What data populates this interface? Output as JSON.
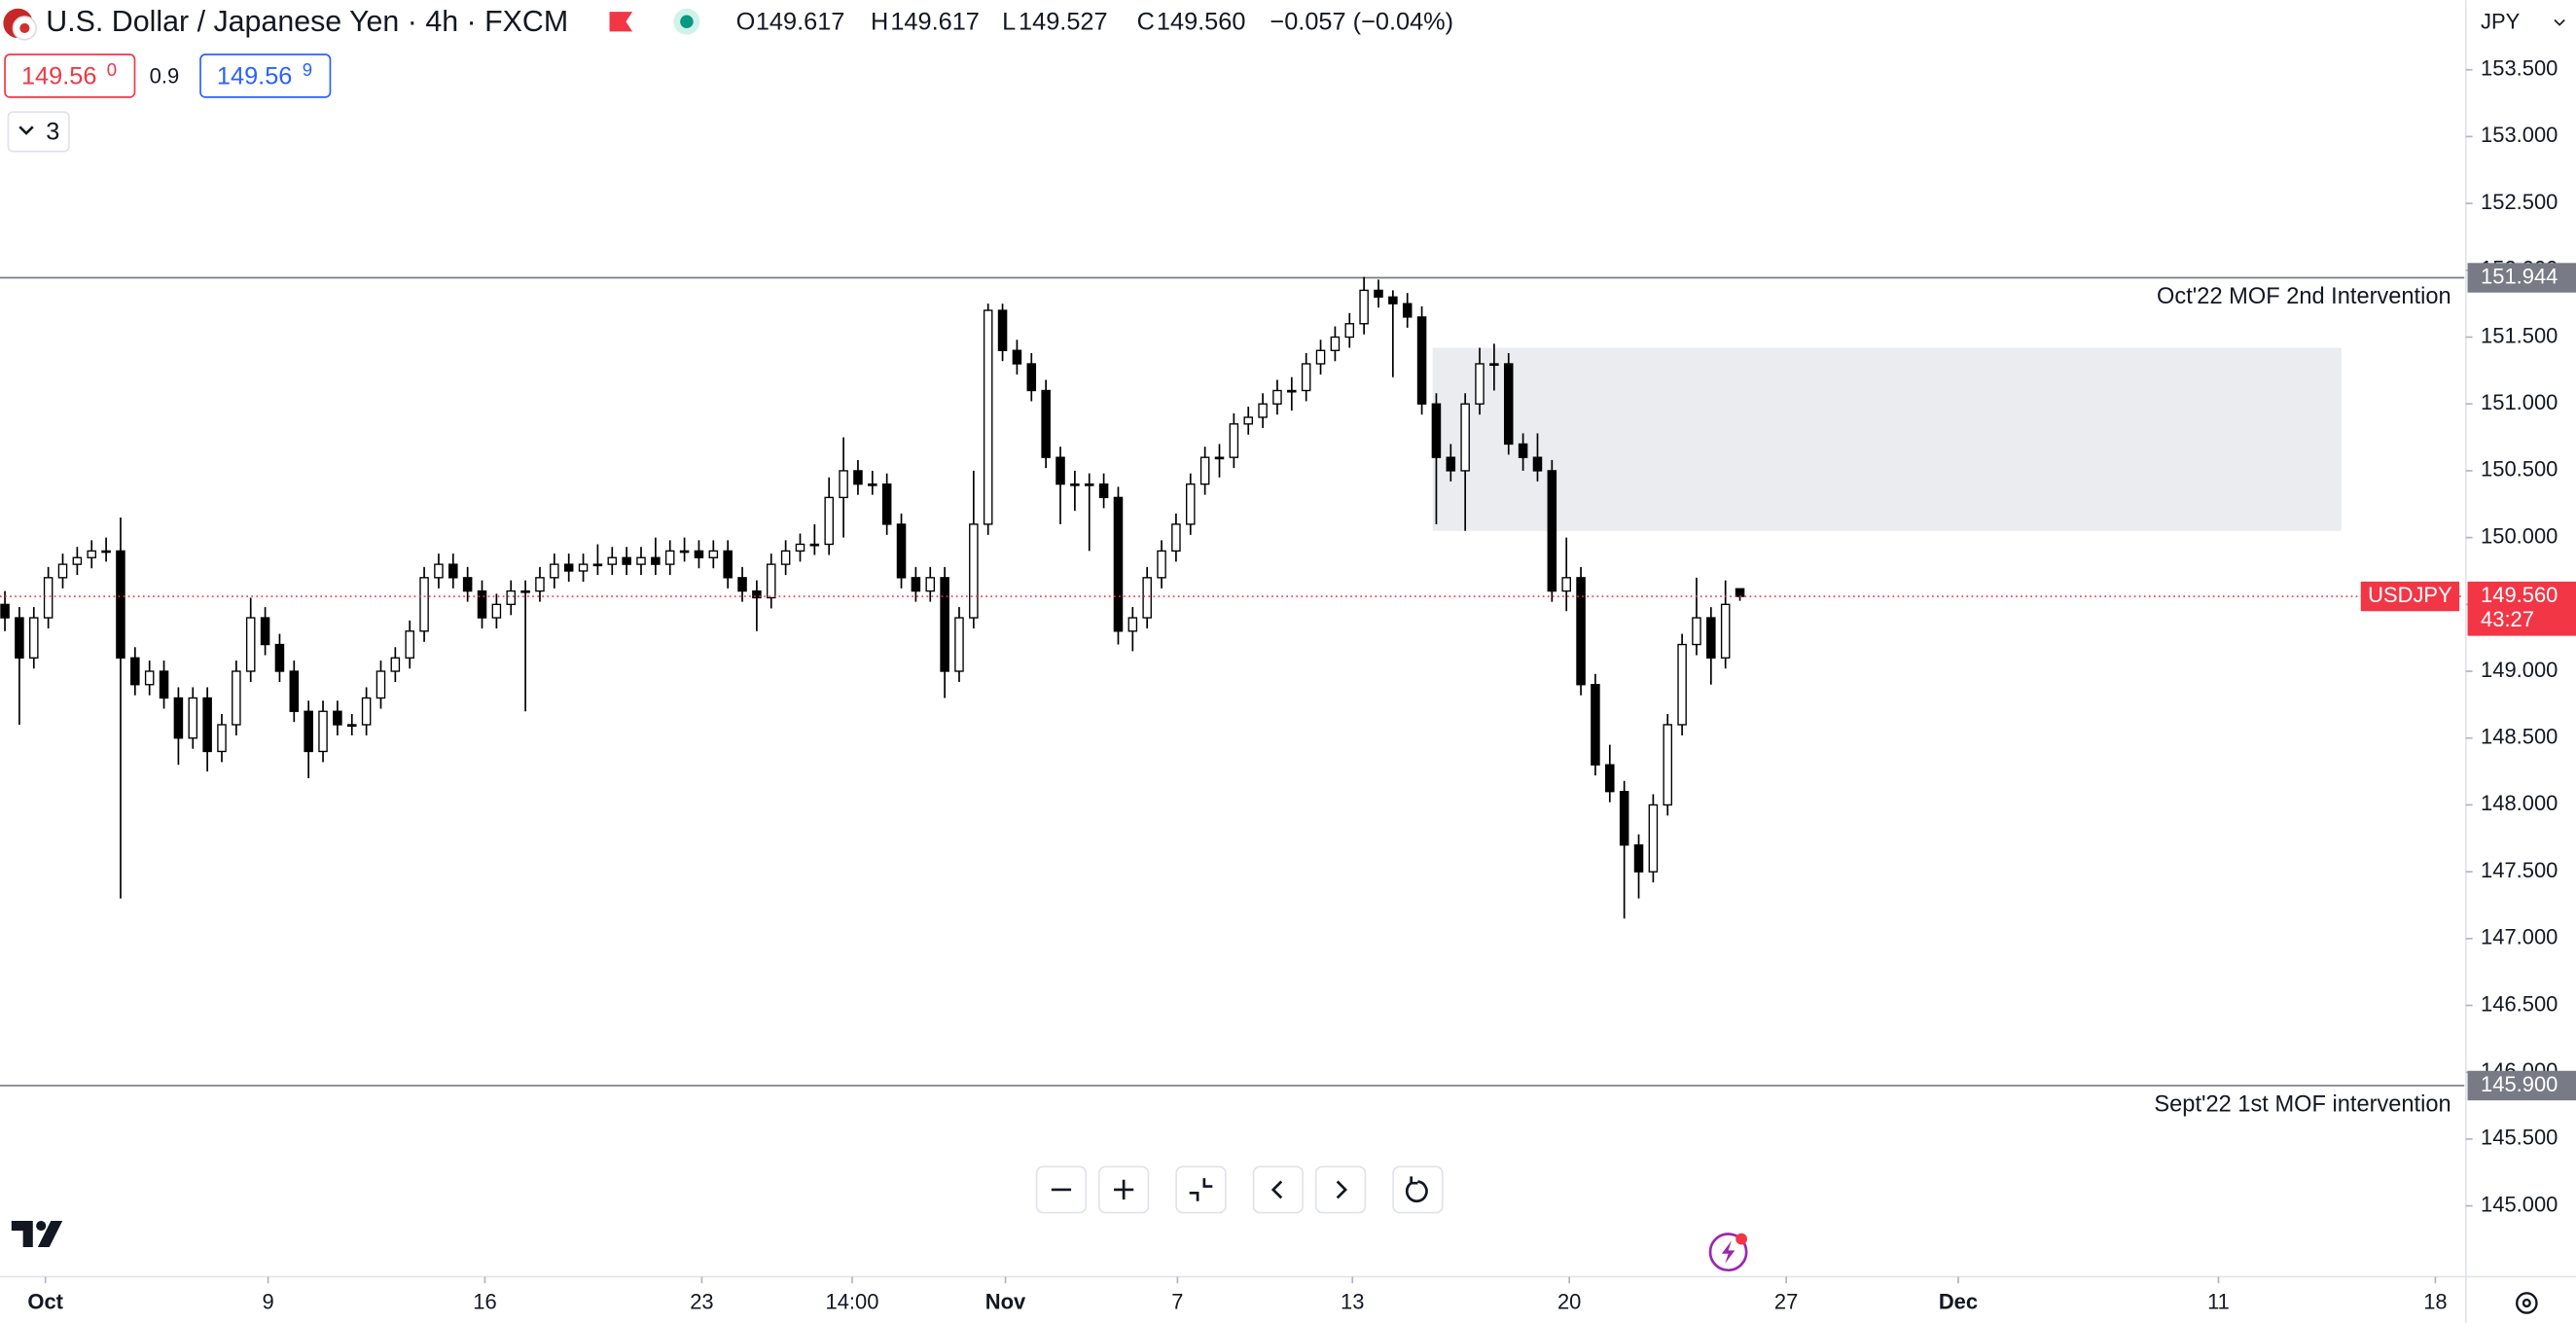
{
  "chart_data": {
    "type": "candlestick",
    "title": "U.S. Dollar / Japanese Yen · 4h · FXCM",
    "legend_values": [
      {
        "key": "O",
        "value": 149.617
      },
      {
        "key": "H",
        "value": 149.617
      },
      {
        "key": "L",
        "value": 149.527
      },
      {
        "key": "C",
        "value": 149.56,
        "label": "149.560"
      }
    ],
    "change": "−0.057 (−0.04%)",
    "bid": {
      "main": "149.56",
      "pip": "0"
    },
    "spread": 0.9,
    "ask": {
      "main": "149.56",
      "pip": "9"
    },
    "indicator_count": 3,
    "currency": "JPY",
    "up_color": "#ffffff",
    "down_color": "#000000",
    "border_color": "#000000",
    "grid": false,
    "candles": [
      [
        149.5,
        149.6,
        149.3,
        149.4
      ],
      [
        149.4,
        149.48,
        148.6,
        149.1
      ],
      [
        149.1,
        149.48,
        149.02,
        149.4
      ],
      [
        149.4,
        149.78,
        149.32,
        149.7
      ],
      [
        149.7,
        149.88,
        149.62,
        149.8
      ],
      [
        149.8,
        149.93,
        149.72,
        149.85
      ],
      [
        149.85,
        149.98,
        149.77,
        149.9
      ],
      [
        149.9,
        150.0,
        149.82,
        149.9
      ],
      [
        149.9,
        150.15,
        147.3,
        149.1
      ],
      [
        149.1,
        149.18,
        148.82,
        148.9
      ],
      [
        148.9,
        149.08,
        148.82,
        149.0
      ],
      [
        149.0,
        149.08,
        148.72,
        148.8
      ],
      [
        148.8,
        148.88,
        148.3,
        148.5
      ],
      [
        148.5,
        148.88,
        148.42,
        148.8
      ],
      [
        148.8,
        148.88,
        148.25,
        148.4
      ],
      [
        148.4,
        148.68,
        148.32,
        148.6
      ],
      [
        148.6,
        149.08,
        148.52,
        149.0
      ],
      [
        149.0,
        149.55,
        148.92,
        149.4
      ],
      [
        149.4,
        149.48,
        149.12,
        149.2
      ],
      [
        149.2,
        149.28,
        148.92,
        149.0
      ],
      [
        149.0,
        149.08,
        148.62,
        148.7
      ],
      [
        148.7,
        148.78,
        148.2,
        148.4
      ],
      [
        148.4,
        148.78,
        148.32,
        148.7
      ],
      [
        148.7,
        148.78,
        148.52,
        148.6
      ],
      [
        148.6,
        148.68,
        148.52,
        148.6
      ],
      [
        148.6,
        148.88,
        148.52,
        148.8
      ],
      [
        148.8,
        149.08,
        148.72,
        149.0
      ],
      [
        149.0,
        149.18,
        148.92,
        149.1
      ],
      [
        149.1,
        149.38,
        149.02,
        149.3
      ],
      [
        149.3,
        149.78,
        149.22,
        149.7
      ],
      [
        149.7,
        149.88,
        149.62,
        149.8
      ],
      [
        149.8,
        149.88,
        149.62,
        149.7
      ],
      [
        149.7,
        149.78,
        149.52,
        149.6
      ],
      [
        149.6,
        149.68,
        149.32,
        149.4
      ],
      [
        149.4,
        149.58,
        149.32,
        149.5
      ],
      [
        149.5,
        149.68,
        149.42,
        149.6
      ],
      [
        149.6,
        149.68,
        148.7,
        149.6
      ],
      [
        149.6,
        149.78,
        149.52,
        149.7
      ],
      [
        149.7,
        149.88,
        149.62,
        149.8
      ],
      [
        149.8,
        149.88,
        149.67,
        149.75
      ],
      [
        149.75,
        149.88,
        149.67,
        149.8
      ],
      [
        149.8,
        149.95,
        149.72,
        149.8
      ],
      [
        149.8,
        149.93,
        149.72,
        149.85
      ],
      [
        149.85,
        149.93,
        149.72,
        149.8
      ],
      [
        149.8,
        149.93,
        149.72,
        149.85
      ],
      [
        149.85,
        150.0,
        149.72,
        149.8
      ],
      [
        149.8,
        149.98,
        149.72,
        149.9
      ],
      [
        149.9,
        150.0,
        149.82,
        149.9
      ],
      [
        149.9,
        149.98,
        149.77,
        149.85
      ],
      [
        149.85,
        149.98,
        149.77,
        149.9
      ],
      [
        149.9,
        149.98,
        149.62,
        149.7
      ],
      [
        149.7,
        149.78,
        149.52,
        149.6
      ],
      [
        149.6,
        149.68,
        149.3,
        149.55
      ],
      [
        149.55,
        149.88,
        149.47,
        149.8
      ],
      [
        149.8,
        149.98,
        149.72,
        149.9
      ],
      [
        149.9,
        150.03,
        149.82,
        149.95
      ],
      [
        149.95,
        150.1,
        149.87,
        149.95
      ],
      [
        149.95,
        150.45,
        149.87,
        150.3
      ],
      [
        150.3,
        150.75,
        150.0,
        150.5
      ],
      [
        150.5,
        150.58,
        150.32,
        150.4
      ],
      [
        150.4,
        150.5,
        150.32,
        150.4
      ],
      [
        150.4,
        150.48,
        150.02,
        150.1
      ],
      [
        150.1,
        150.18,
        149.62,
        149.7
      ],
      [
        149.7,
        149.78,
        149.52,
        149.6
      ],
      [
        149.6,
        149.78,
        149.52,
        149.7
      ],
      [
        149.7,
        149.78,
        148.8,
        149.0
      ],
      [
        149.0,
        149.48,
        148.92,
        149.4
      ],
      [
        149.4,
        150.5,
        149.32,
        150.1
      ],
      [
        150.1,
        151.75,
        150.02,
        151.7
      ],
      [
        151.7,
        151.75,
        151.32,
        151.4
      ],
      [
        151.4,
        151.48,
        151.22,
        151.3
      ],
      [
        151.3,
        151.38,
        151.02,
        151.1
      ],
      [
        151.1,
        151.18,
        150.52,
        150.6
      ],
      [
        150.6,
        150.68,
        150.1,
        150.4
      ],
      [
        150.4,
        150.5,
        150.2,
        150.4
      ],
      [
        150.4,
        150.48,
        149.9,
        150.4
      ],
      [
        150.4,
        150.48,
        150.22,
        150.3
      ],
      [
        150.3,
        150.38,
        149.2,
        149.3
      ],
      [
        149.3,
        149.48,
        149.15,
        149.4
      ],
      [
        149.4,
        149.78,
        149.32,
        149.7
      ],
      [
        149.7,
        149.98,
        149.62,
        149.9
      ],
      [
        149.9,
        150.18,
        149.82,
        150.1
      ],
      [
        150.1,
        150.48,
        150.02,
        150.4
      ],
      [
        150.4,
        150.68,
        150.32,
        150.6
      ],
      [
        150.6,
        150.7,
        150.45,
        150.6
      ],
      [
        150.6,
        150.93,
        150.52,
        150.85
      ],
      [
        150.85,
        150.98,
        150.77,
        150.9
      ],
      [
        150.9,
        151.08,
        150.82,
        151.0
      ],
      [
        151.0,
        151.18,
        150.92,
        151.1
      ],
      [
        151.1,
        151.2,
        150.95,
        151.1
      ],
      [
        151.1,
        151.38,
        151.02,
        151.3
      ],
      [
        151.3,
        151.48,
        151.22,
        151.4
      ],
      [
        151.4,
        151.58,
        151.32,
        151.5
      ],
      [
        151.5,
        151.68,
        151.42,
        151.6
      ],
      [
        151.6,
        151.95,
        151.52,
        151.85
      ],
      [
        151.85,
        151.93,
        151.72,
        151.8
      ],
      [
        151.8,
        151.85,
        151.2,
        151.75
      ],
      [
        151.75,
        151.83,
        151.57,
        151.65
      ],
      [
        151.65,
        151.73,
        150.92,
        151.0
      ],
      [
        151.0,
        151.08,
        150.1,
        150.6
      ],
      [
        150.6,
        150.7,
        150.42,
        150.5
      ],
      [
        150.5,
        151.08,
        150.05,
        151.0
      ],
      [
        151.0,
        151.42,
        150.92,
        151.3
      ],
      [
        151.3,
        151.45,
        151.1,
        151.3
      ],
      [
        151.3,
        151.38,
        150.62,
        150.7
      ],
      [
        150.7,
        150.78,
        150.5,
        150.6
      ],
      [
        150.6,
        150.78,
        150.42,
        150.5
      ],
      [
        150.5,
        150.58,
        149.52,
        149.6
      ],
      [
        149.6,
        150.0,
        149.45,
        149.7
      ],
      [
        149.7,
        149.78,
        148.82,
        148.9
      ],
      [
        148.9,
        148.98,
        148.22,
        148.3
      ],
      [
        148.3,
        148.45,
        148.02,
        148.1
      ],
      [
        148.1,
        148.18,
        147.15,
        147.7
      ],
      [
        147.7,
        147.78,
        147.3,
        147.5
      ],
      [
        147.5,
        148.08,
        147.42,
        148.0
      ],
      [
        148.0,
        148.68,
        147.92,
        148.6
      ],
      [
        148.6,
        149.28,
        148.52,
        149.2
      ],
      [
        149.2,
        149.7,
        149.12,
        149.4
      ],
      [
        149.4,
        149.48,
        148.9,
        149.1
      ],
      [
        149.1,
        149.68,
        149.02,
        149.5
      ],
      [
        149.617,
        149.617,
        149.527,
        149.56
      ]
    ],
    "xlim": [
      -0.34,
      170.1
    ],
    "xticks": [
      {
        "value": 2.8,
        "label": "Oct"
      },
      {
        "value": 18.2,
        "label": "9"
      },
      {
        "value": 33.2,
        "label": "16"
      },
      {
        "value": 48.2,
        "label": "23"
      },
      {
        "value": 58.6,
        "label": "14:00"
      },
      {
        "value": 69.2,
        "label": "Nov"
      },
      {
        "value": 81.1,
        "label": "7"
      },
      {
        "value": 93.2,
        "label": "13"
      },
      {
        "value": 108.2,
        "label": "20"
      },
      {
        "value": 123.2,
        "label": "27"
      },
      {
        "value": 135.1,
        "label": "Dec"
      },
      {
        "value": 153.1,
        "label": "11"
      },
      {
        "value": 168.1,
        "label": "18"
      }
    ],
    "ylim": [
      144.47,
      154.02
    ],
    "yticks": [
      {
        "value": 145,
        "label": "145.000"
      },
      {
        "value": 145.5,
        "label": "145.500"
      },
      {
        "value": 146,
        "label": "146.000"
      },
      {
        "value": 146.5,
        "label": "146.500"
      },
      {
        "value": 147,
        "label": "147.000"
      },
      {
        "value": 147.5,
        "label": "147.500"
      },
      {
        "value": 148,
        "label": "148.000"
      },
      {
        "value": 148.5,
        "label": "148.500"
      },
      {
        "value": 149,
        "label": "149.000"
      },
      {
        "value": 149.5,
        "label": "149.500"
      },
      {
        "value": 150,
        "label": "150.000"
      },
      {
        "value": 150.5,
        "label": "150.500"
      },
      {
        "value": 151,
        "label": "151.000"
      },
      {
        "value": 151.5,
        "label": "151.500"
      },
      {
        "value": 152,
        "label": "152.000"
      },
      {
        "value": 152.5,
        "label": "152.500"
      },
      {
        "value": 153,
        "label": "153.000"
      },
      {
        "value": 153.5,
        "label": "153.500"
      }
    ],
    "levels": [
      {
        "value": 151.944,
        "label": "151.944",
        "text": "Oct'22 MOF 2nd Intervention"
      },
      {
        "value": 145.9,
        "label": "145.900",
        "text": "Sept'22 1st MOF intervention"
      }
    ],
    "zone": {
      "x": [
        98.75,
        161.6
      ],
      "y": [
        151.42,
        150.05
      ],
      "color": "#ebecef"
    },
    "last_price": {
      "symbol": "USDJPY",
      "value": 149.56,
      "label": "149.560",
      "countdown": "43:27",
      "color": "#f23645"
    }
  }
}
